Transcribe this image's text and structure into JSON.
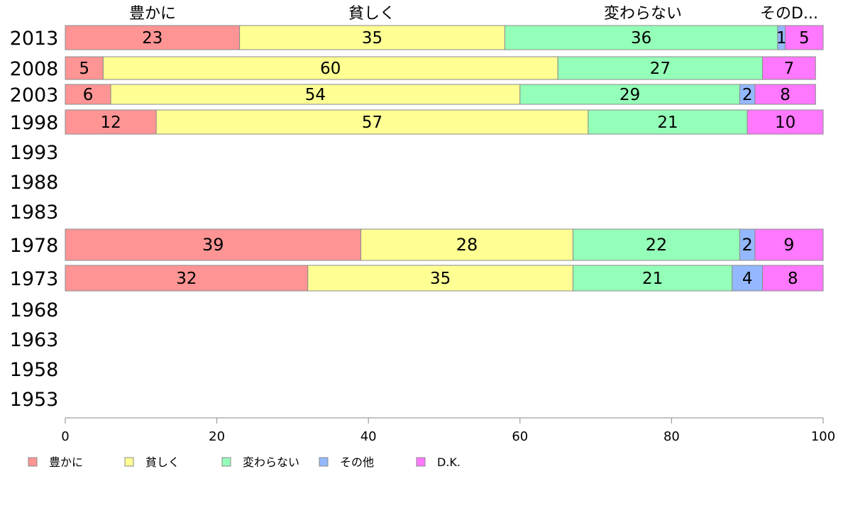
{
  "chart_data": {
    "type": "bar",
    "orientation": "horizontal",
    "stacked": true,
    "categories": [
      "2013",
      "2008",
      "2003",
      "1998",
      "1993",
      "1988",
      "1983",
      "1978",
      "1973",
      "1968",
      "1963",
      "1958",
      "1953"
    ],
    "series": [
      {
        "name": "豊かに",
        "color": "#ff9494",
        "values": [
          23,
          5,
          6,
          12,
          null,
          null,
          null,
          39,
          32,
          null,
          null,
          null,
          null
        ]
      },
      {
        "name": "貧しく",
        "color": "#ffff94",
        "values": [
          35,
          60,
          54,
          57,
          null,
          null,
          null,
          28,
          35,
          null,
          null,
          null,
          null
        ]
      },
      {
        "name": "変わらない",
        "color": "#94ffb8",
        "values": [
          36,
          27,
          29,
          21,
          null,
          null,
          null,
          22,
          21,
          null,
          null,
          null,
          null
        ]
      },
      {
        "name": "その他",
        "color": "#94b8ff",
        "values": [
          1,
          0,
          2,
          0,
          null,
          null,
          null,
          2,
          4,
          null,
          null,
          null,
          null
        ]
      },
      {
        "name": "D.K.",
        "color": "#ff78ff",
        "values": [
          5,
          7,
          8,
          10,
          null,
          null,
          null,
          9,
          8,
          null,
          null,
          null,
          null
        ]
      }
    ],
    "top_labels": [
      "豊かに",
      "貧しく",
      "変わらない",
      "そのD..."
    ],
    "xlim": [
      0,
      100
    ],
    "x_ticks": [
      "0",
      "20",
      "40",
      "60",
      "80",
      "100"
    ],
    "legend_position": "bottom-left",
    "grid": false
  }
}
